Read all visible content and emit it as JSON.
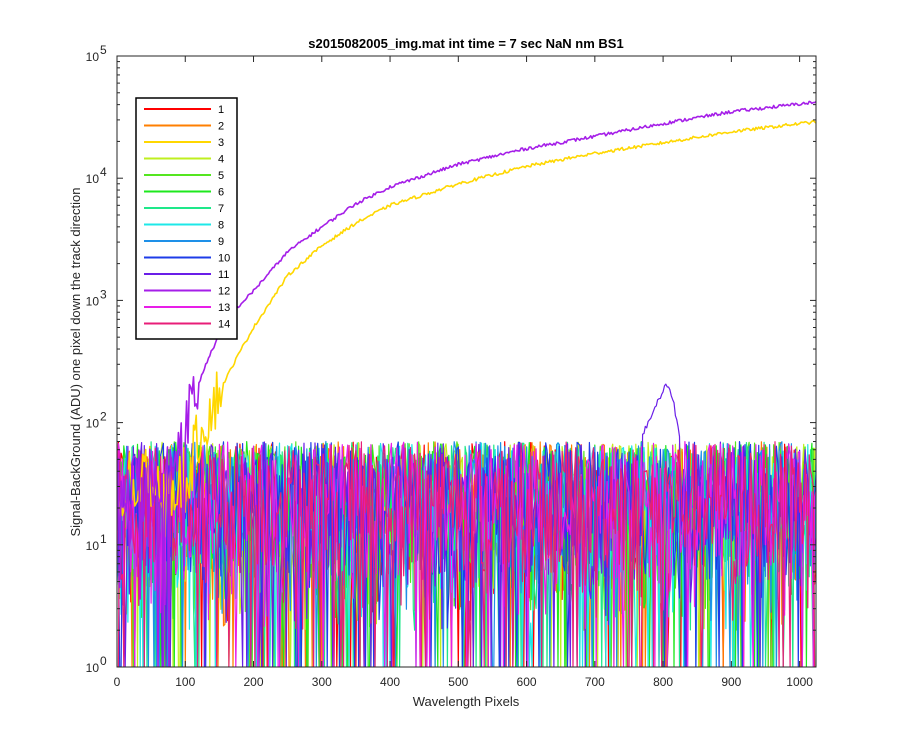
{
  "chart_data": {
    "type": "line",
    "title": "s2015082005_img.mat int time = 7 sec  NaN nm BS1",
    "xlabel": "Wavelength Pixels",
    "ylabel": "Signal-BackGround (ADU) one pixel down the track direction",
    "x_scale": "linear",
    "y_scale": "log",
    "xlim": [
      0,
      1024
    ],
    "ylim": [
      1,
      100000
    ],
    "xticks": [
      0,
      100,
      200,
      300,
      400,
      500,
      600,
      700,
      800,
      900,
      1000
    ],
    "xtick_labels": [
      "0",
      "100",
      "200",
      "300",
      "400",
      "500",
      "600",
      "700",
      "800",
      "900",
      "1000"
    ],
    "yticks": [
      1,
      10,
      100,
      1000,
      10000,
      100000
    ],
    "ytick_labels": [
      {
        "base": "10",
        "exp": "0"
      },
      {
        "base": "10",
        "exp": "1"
      },
      {
        "base": "10",
        "exp": "2"
      },
      {
        "base": "10",
        "exp": "3"
      },
      {
        "base": "10",
        "exp": "4"
      },
      {
        "base": "10",
        "exp": "5"
      }
    ],
    "grid": false,
    "legend_position": "top-left",
    "noise_band": {
      "x_range": [
        0,
        1024
      ],
      "typical_low": 5,
      "typical_high": 70,
      "floor": 1
    },
    "series": [
      {
        "name": "1",
        "color": "#ff0000",
        "kind": "noise"
      },
      {
        "name": "2",
        "color": "#ff7f00",
        "kind": "noise"
      },
      {
        "name": "3",
        "color": "#ffd700",
        "kind": "signal",
        "x": [
          0,
          100,
          120,
          150,
          180,
          200,
          250,
          300,
          350,
          400,
          500,
          600,
          700,
          800,
          900,
          1024
        ],
        "y": [
          30,
          30,
          80,
          180,
          380,
          600,
          1600,
          2800,
          4300,
          6000,
          9000,
          12500,
          16000,
          19500,
          24000,
          29000
        ]
      },
      {
        "name": "4",
        "color": "#bfef1f",
        "kind": "noise"
      },
      {
        "name": "5",
        "color": "#55e620",
        "kind": "noise"
      },
      {
        "name": "6",
        "color": "#1ee81e",
        "kind": "noise"
      },
      {
        "name": "7",
        "color": "#1ee88a",
        "kind": "noise"
      },
      {
        "name": "8",
        "color": "#1ee8e8",
        "kind": "noise"
      },
      {
        "name": "9",
        "color": "#1e90e8",
        "kind": "noise"
      },
      {
        "name": "10",
        "color": "#1e3ce8",
        "kind": "noise"
      },
      {
        "name": "11",
        "color": "#6a1ee8",
        "kind": "noise",
        "peak": {
          "x": [
            770,
            785,
            795,
            805,
            815,
            825
          ],
          "y": [
            80,
            120,
            160,
            210,
            150,
            70
          ]
        }
      },
      {
        "name": "12",
        "color": "#a51ee8",
        "kind": "signal",
        "x": [
          0,
          80,
          100,
          130,
          160,
          200,
          250,
          300,
          350,
          400,
          500,
          600,
          700,
          800,
          900,
          1024
        ],
        "y": [
          30,
          40,
          100,
          300,
          700,
          1200,
          2500,
          4000,
          6200,
          8500,
          13000,
          17500,
          22000,
          28000,
          35000,
          42000
        ]
      },
      {
        "name": "13",
        "color": "#e81ee8",
        "kind": "noise"
      },
      {
        "name": "14",
        "color": "#e81e78",
        "kind": "noise"
      }
    ]
  }
}
